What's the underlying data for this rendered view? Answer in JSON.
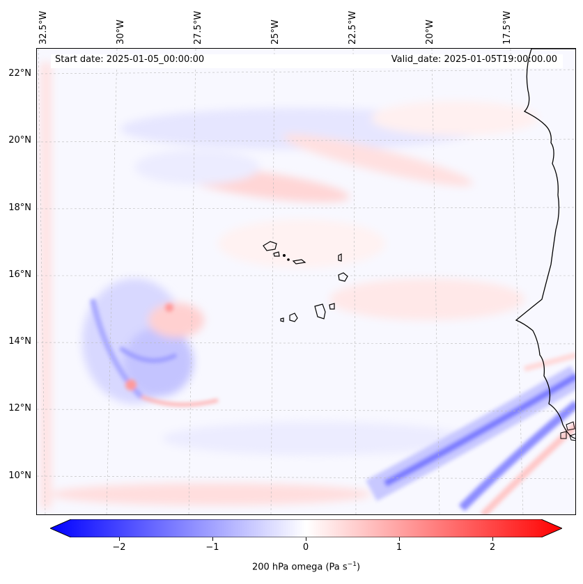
{
  "header": {
    "start_date": "Start date: 2025-01-05_00:00:00",
    "valid_date": "Valid_date: 2025-01-05T19:00:00.00"
  },
  "axes": {
    "lon_labels": [
      "32.5°W",
      "30°W",
      "27.5°W",
      "25°W",
      "22.5°W",
      "20°W",
      "17.5°W"
    ],
    "lat_labels": [
      "22°N",
      "20°N",
      "18°N",
      "16°N",
      "14°N",
      "12°N",
      "10°N"
    ]
  },
  "colorbar": {
    "label": "200 hPa omega (Pa s",
    "label_sup": "−1",
    "label_close": ")",
    "ticks": [
      "−2",
      "−1",
      "0",
      "1",
      "2"
    ],
    "range": [
      -2.6,
      2.6
    ],
    "low_color": "#0000ff",
    "mid_color": "#ffffff",
    "high_color": "#ff0000"
  },
  "map": {
    "variable": "omega",
    "level_hpa": 200,
    "region": "Cape Verde / West Africa"
  }
}
